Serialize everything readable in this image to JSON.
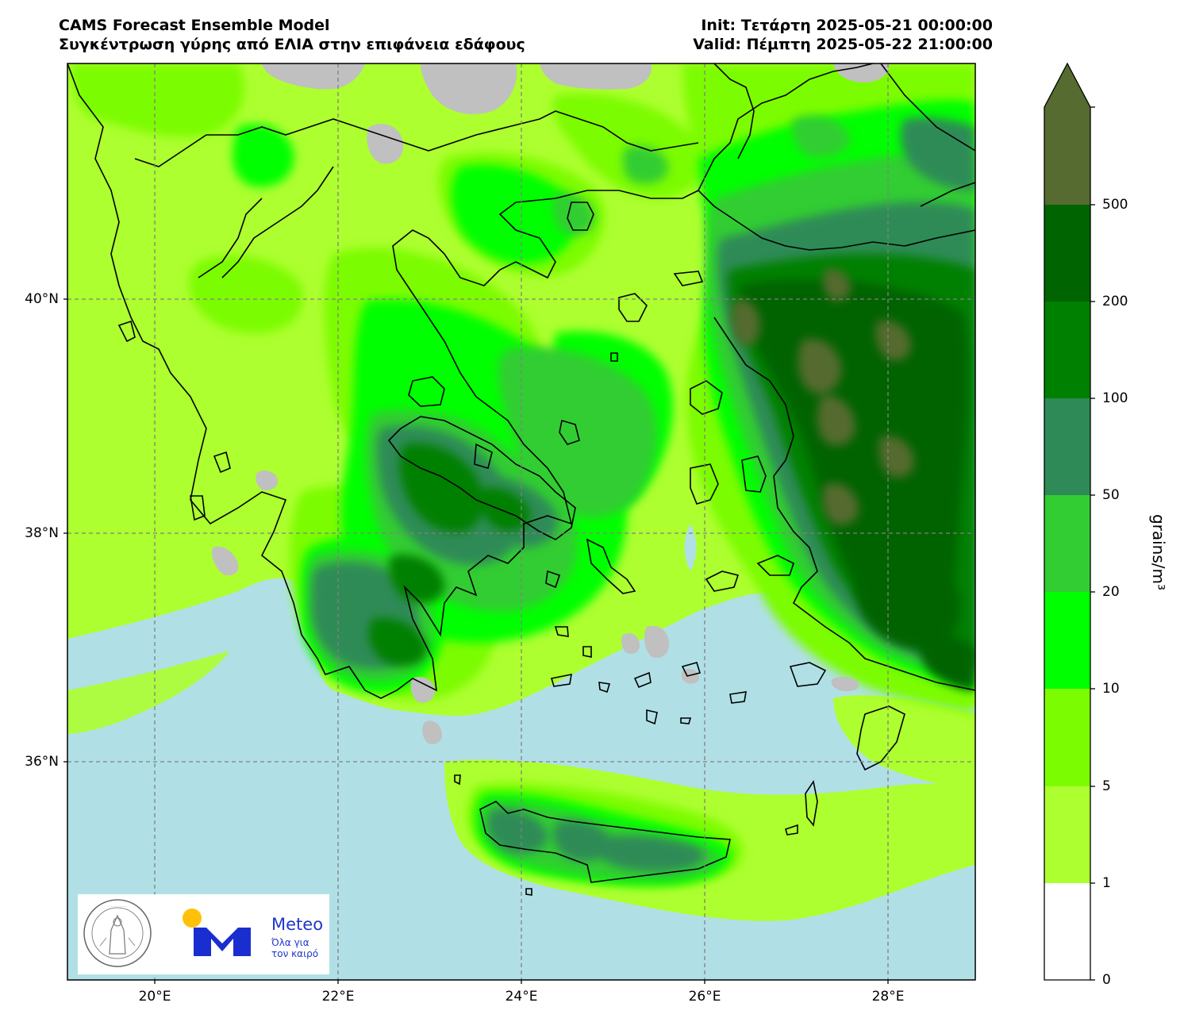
{
  "header": {
    "model": "CAMS Forecast Ensemble Model",
    "subtitle": "Συγκέντρωση γύρης από ΕΛΙΑ στην επιφάνεια εδάφους",
    "init": "Init: Τετάρτη 2025-05-21 00:00:00",
    "valid": "Valid: Πέμπτη 2025-05-22 21:00:00"
  },
  "axes": {
    "lat_labels": [
      "40°N",
      "38°N",
      "36°N"
    ],
    "lon_labels": [
      "20°E",
      "22°E",
      "24°E",
      "26°E",
      "28°E"
    ]
  },
  "colorbar": {
    "title": "grains/m³",
    "ticks": [
      "0",
      "1",
      "5",
      "10",
      "20",
      "50",
      "100",
      "200",
      "500"
    ],
    "colors": [
      "#ffffff",
      "#adff2f",
      "#7cfc00",
      "#00ff00",
      "#32cd32",
      "#2e8b57",
      "#008000",
      "#006400",
      "#556b2f"
    ]
  },
  "map_colors": {
    "sea": "#b0e0e6",
    "no_data": "#c0c0c0"
  },
  "logos": {
    "meteo_name": "Meteo",
    "meteo_slogan_1": "Όλα για",
    "meteo_slogan_2": "τον καιρό",
    "seal_text": "ΕΘΝΙΚΟΝ ΑΣΤΕΡΟΣΚΟΠΕΙΟΝ ΑΘΗΝΩΝ · NATIONAL OBSERVATORY OF ATHENS"
  }
}
